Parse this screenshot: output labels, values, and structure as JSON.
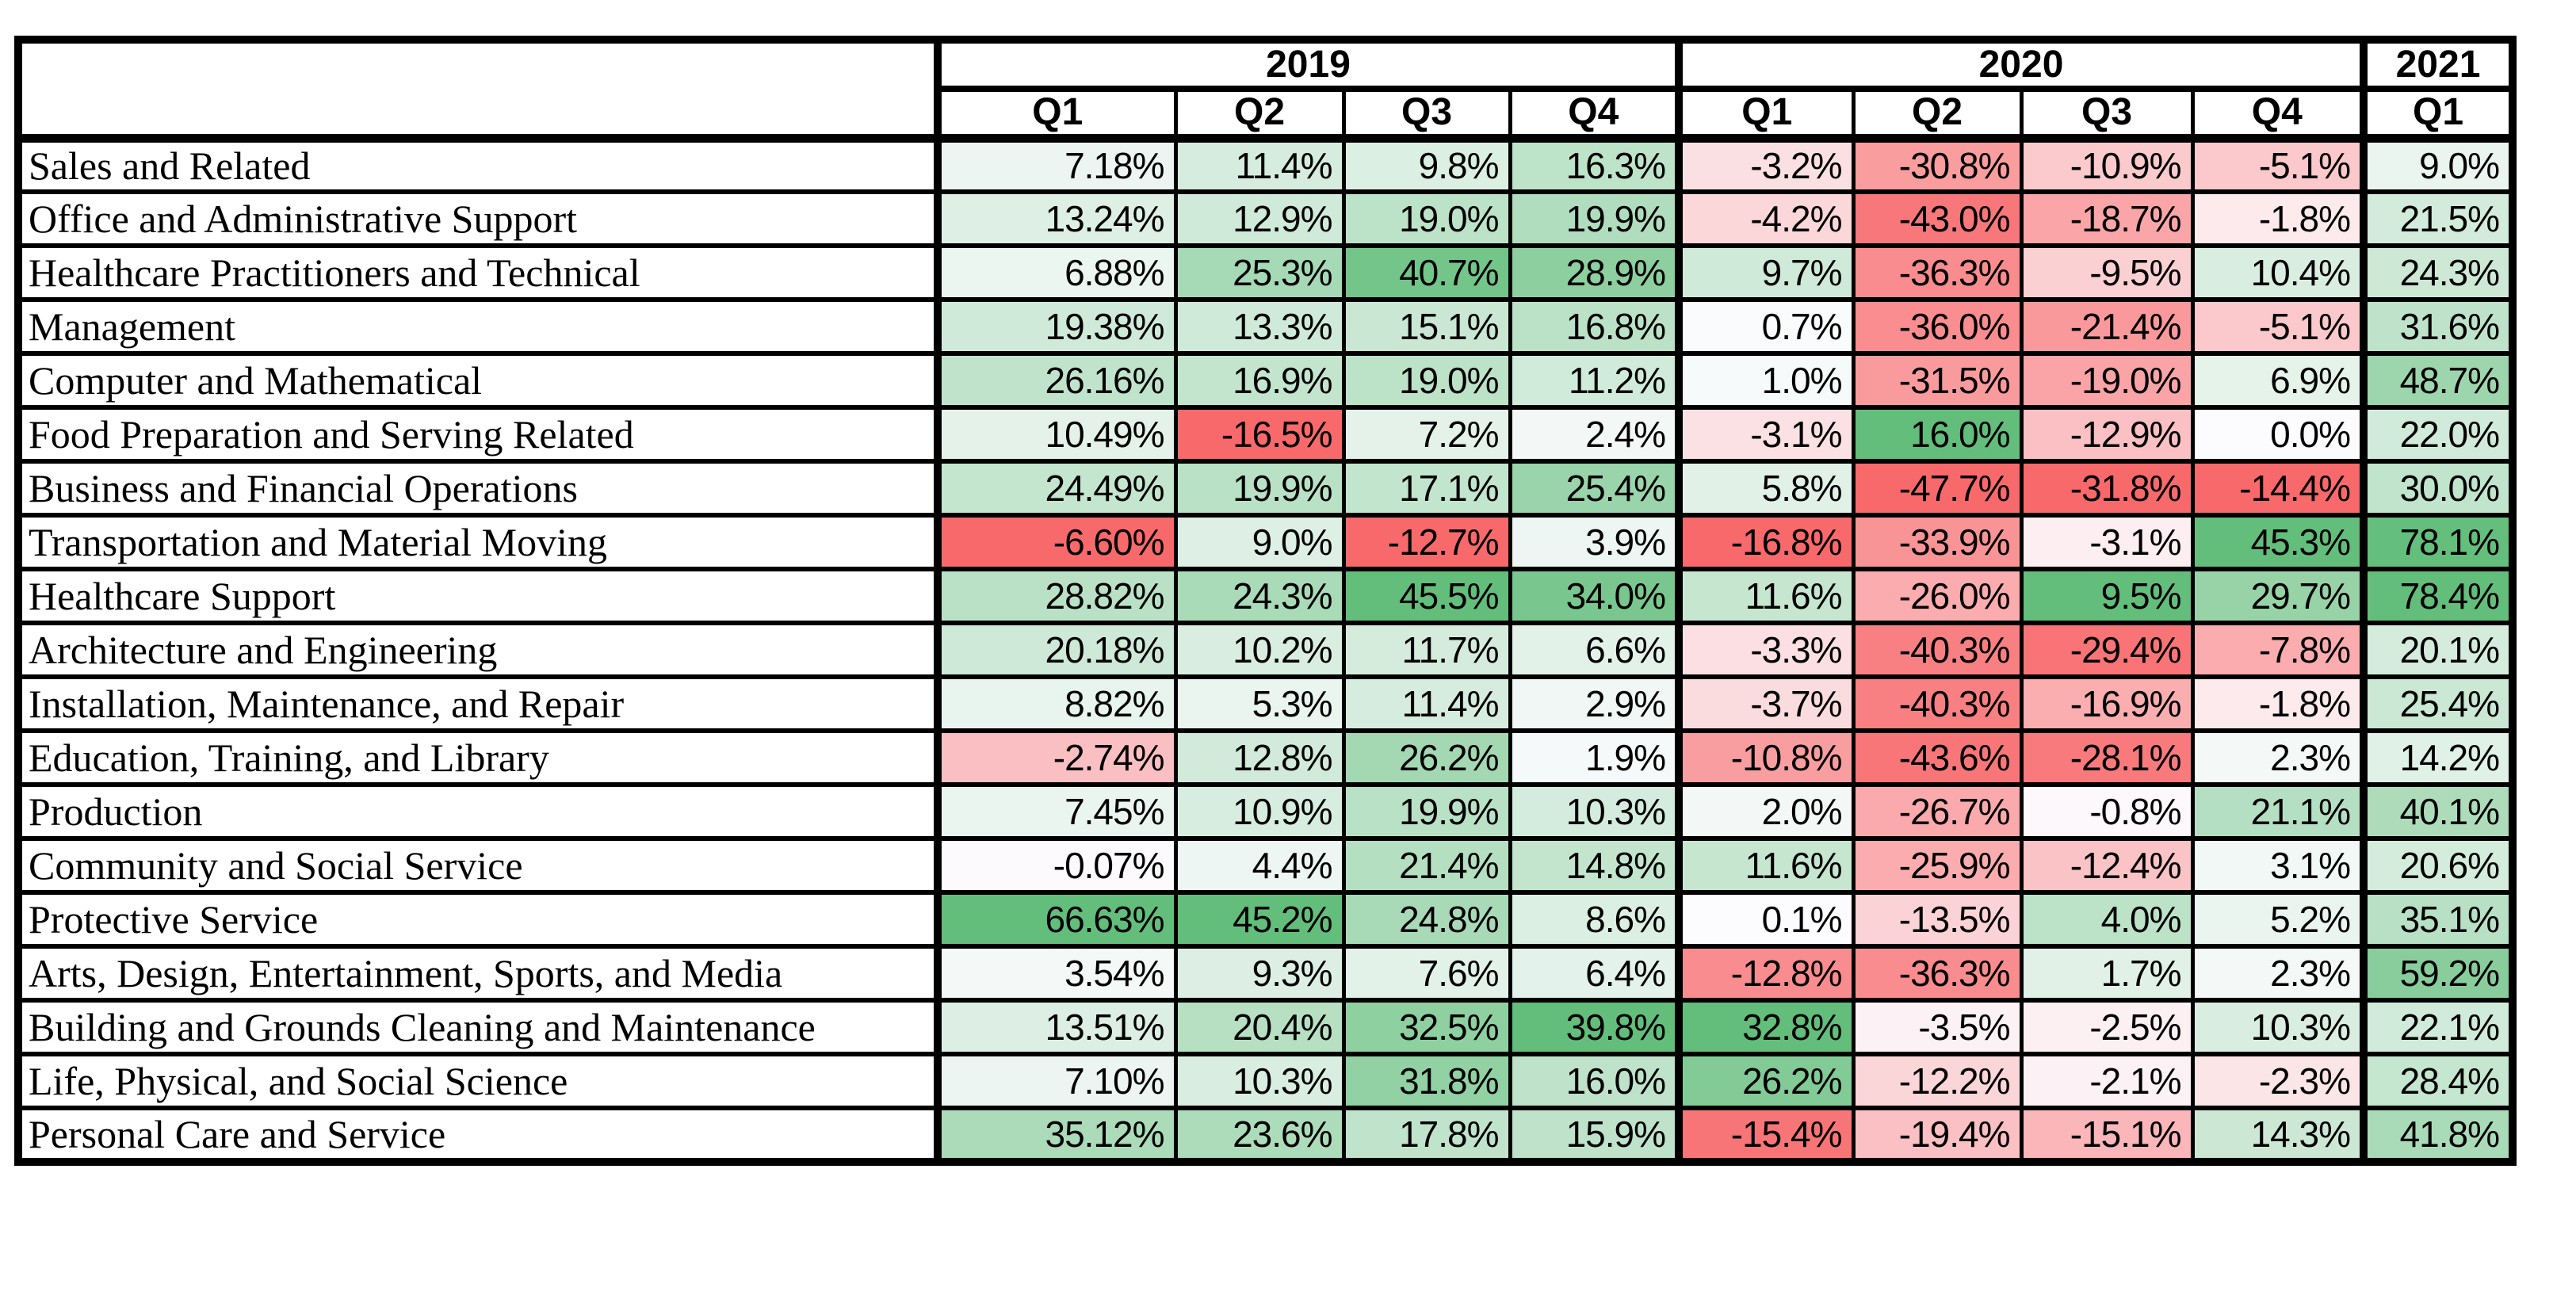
{
  "page": {
    "background": "#ffffff"
  },
  "chart_data": {
    "type": "heatmap",
    "title": "",
    "unit": "%",
    "legend": "none",
    "grid": "table with black cell borders",
    "col_groups": [
      {
        "label": "2019",
        "span": 4
      },
      {
        "label": "2020",
        "span": 4
      },
      {
        "label": "2021",
        "span": 1
      }
    ],
    "col_headers": [
      "Q1",
      "Q2",
      "Q3",
      "Q4",
      "Q1",
      "Q2",
      "Q3",
      "Q4",
      "Q1"
    ],
    "row_labels": [
      "Sales and Related",
      "Office and Administrative Support",
      "Healthcare Practitioners and Technical",
      "Management",
      "Computer and Mathematical",
      "Food Preparation and Serving Related",
      "Business and Financial Operations",
      "Transportation and Material Moving",
      "Healthcare Support",
      "Architecture and Engineering",
      "Installation, Maintenance, and Repair",
      "Education, Training, and Library",
      "Production",
      "Community and Social Service",
      "Protective Service",
      "Arts, Design, Entertainment, Sports, and Media",
      "Building and Grounds Cleaning and Maintenance",
      "Life, Physical, and Social Science",
      "Personal Care and Service"
    ],
    "display_values": [
      [
        "7.18%",
        "11.4%",
        "9.8%",
        "16.3%",
        "-3.2%",
        "-30.8%",
        "-10.9%",
        "-5.1%",
        "9.0%"
      ],
      [
        "13.24%",
        "12.9%",
        "19.0%",
        "19.9%",
        "-4.2%",
        "-43.0%",
        "-18.7%",
        "-1.8%",
        "21.5%"
      ],
      [
        "6.88%",
        "25.3%",
        "40.7%",
        "28.9%",
        "9.7%",
        "-36.3%",
        "-9.5%",
        "10.4%",
        "24.3%"
      ],
      [
        "19.38%",
        "13.3%",
        "15.1%",
        "16.8%",
        "0.7%",
        "-36.0%",
        "-21.4%",
        "-5.1%",
        "31.6%"
      ],
      [
        "26.16%",
        "16.9%",
        "19.0%",
        "11.2%",
        "1.0%",
        "-31.5%",
        "-19.0%",
        "6.9%",
        "48.7%"
      ],
      [
        "10.49%",
        "-16.5%",
        "7.2%",
        "2.4%",
        "-3.1%",
        "16.0%",
        "-12.9%",
        "0.0%",
        "22.0%"
      ],
      [
        "24.49%",
        "19.9%",
        "17.1%",
        "25.4%",
        "5.8%",
        "-47.7%",
        "-31.8%",
        "-14.4%",
        "30.0%"
      ],
      [
        "-6.60%",
        "9.0%",
        "-12.7%",
        "3.9%",
        "-16.8%",
        "-33.9%",
        "-3.1%",
        "45.3%",
        "78.1%"
      ],
      [
        "28.82%",
        "24.3%",
        "45.5%",
        "34.0%",
        "11.6%",
        "-26.0%",
        "9.5%",
        "29.7%",
        "78.4%"
      ],
      [
        "20.18%",
        "10.2%",
        "11.7%",
        "6.6%",
        "-3.3%",
        "-40.3%",
        "-29.4%",
        "-7.8%",
        "20.1%"
      ],
      [
        "8.82%",
        "5.3%",
        "11.4%",
        "2.9%",
        "-3.7%",
        "-40.3%",
        "-16.9%",
        "-1.8%",
        "25.4%"
      ],
      [
        "-2.74%",
        "12.8%",
        "26.2%",
        "1.9%",
        "-10.8%",
        "-43.6%",
        "-28.1%",
        "2.3%",
        "14.2%"
      ],
      [
        "7.45%",
        "10.9%",
        "19.9%",
        "10.3%",
        "2.0%",
        "-26.7%",
        "-0.8%",
        "21.1%",
        "40.1%"
      ],
      [
        "-0.07%",
        "4.4%",
        "21.4%",
        "14.8%",
        "11.6%",
        "-25.9%",
        "-12.4%",
        "3.1%",
        "20.6%"
      ],
      [
        "66.63%",
        "45.2%",
        "24.8%",
        "8.6%",
        "0.1%",
        "-13.5%",
        "4.0%",
        "5.2%",
        "35.1%"
      ],
      [
        "3.54%",
        "9.3%",
        "7.6%",
        "6.4%",
        "-12.8%",
        "-36.3%",
        "1.7%",
        "2.3%",
        "59.2%"
      ],
      [
        "13.51%",
        "20.4%",
        "32.5%",
        "39.8%",
        "32.8%",
        "-3.5%",
        "-2.5%",
        "10.3%",
        "22.1%"
      ],
      [
        "7.10%",
        "10.3%",
        "31.8%",
        "16.0%",
        "26.2%",
        "-12.2%",
        "-2.1%",
        "-2.3%",
        "28.4%"
      ],
      [
        "35.12%",
        "23.6%",
        "17.8%",
        "15.9%",
        "-15.4%",
        "-19.4%",
        "-15.1%",
        "14.3%",
        "41.8%"
      ]
    ],
    "color_scale": {
      "negative_end": "#F8696B",
      "midpoint": "#FCFCFF",
      "positive_end": "#63BE7B",
      "mode": "3-color scale applied independently per column; white at 0, full red at column minimum, full green at column maximum"
    }
  }
}
